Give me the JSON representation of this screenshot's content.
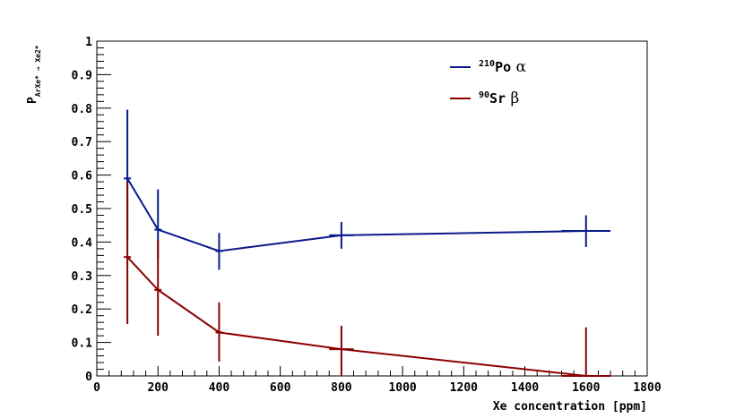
{
  "chart_data": {
    "type": "line",
    "xlabel": "Xe concentration [ppm]",
    "ylabel": "P",
    "ylabel_subscript": "ArXe* → Xe2*",
    "xlim": [
      0,
      1800
    ],
    "ylim": [
      0,
      1
    ],
    "x_ticks": [
      "0",
      "200",
      "400",
      "600",
      "800",
      "1000",
      "1200",
      "1400",
      "1600",
      "1800"
    ],
    "y_ticks": [
      "0",
      "0.1",
      "0.2",
      "0.3",
      "0.4",
      "0.5",
      "0.6",
      "0.7",
      "0.8",
      "0.9",
      "1"
    ],
    "grid": false,
    "legend_position": "top-right",
    "series": [
      {
        "name_prefix": "210",
        "name_main": "Po",
        "name_suffix": " α",
        "color": "#0a1a8a",
        "points": [
          {
            "x": 100,
            "y": 0.59,
            "yerr_low": 0.41,
            "yerr_high": 0.795
          },
          {
            "x": 200,
            "y": 0.437,
            "yerr_low": 0.35,
            "yerr_high": 0.557
          },
          {
            "x": 400,
            "y": 0.373,
            "yerr_low": 0.317,
            "yerr_high": 0.427
          },
          {
            "x": 800,
            "y": 0.42,
            "xerr_low": 760,
            "xerr_high": 840,
            "yerr_low": 0.38,
            "yerr_high": 0.46
          },
          {
            "x": 1600,
            "y": 0.433,
            "xerr_low": 1520,
            "xerr_high": 1680,
            "yerr_low": 0.385,
            "yerr_high": 0.48
          }
        ]
      },
      {
        "name_prefix": "90",
        "name_main": "Sr",
        "name_suffix": " β",
        "color": "#8b0000",
        "points": [
          {
            "x": 100,
            "y": 0.355,
            "yerr_low": 0.155,
            "yerr_high": 0.58
          },
          {
            "x": 200,
            "y": 0.257,
            "yerr_low": 0.12,
            "yerr_high": 0.405
          },
          {
            "x": 400,
            "y": 0.13,
            "yerr_low": 0.043,
            "yerr_high": 0.22
          },
          {
            "x": 800,
            "y": 0.08,
            "xerr_low": 760,
            "xerr_high": 840,
            "yerr_low": 0.0,
            "yerr_high": 0.15
          },
          {
            "x": 1600,
            "y": 0.0,
            "xerr_low": 1520,
            "xerr_high": 1680,
            "yerr_low": 0.0,
            "yerr_high": 0.145
          }
        ]
      }
    ]
  }
}
